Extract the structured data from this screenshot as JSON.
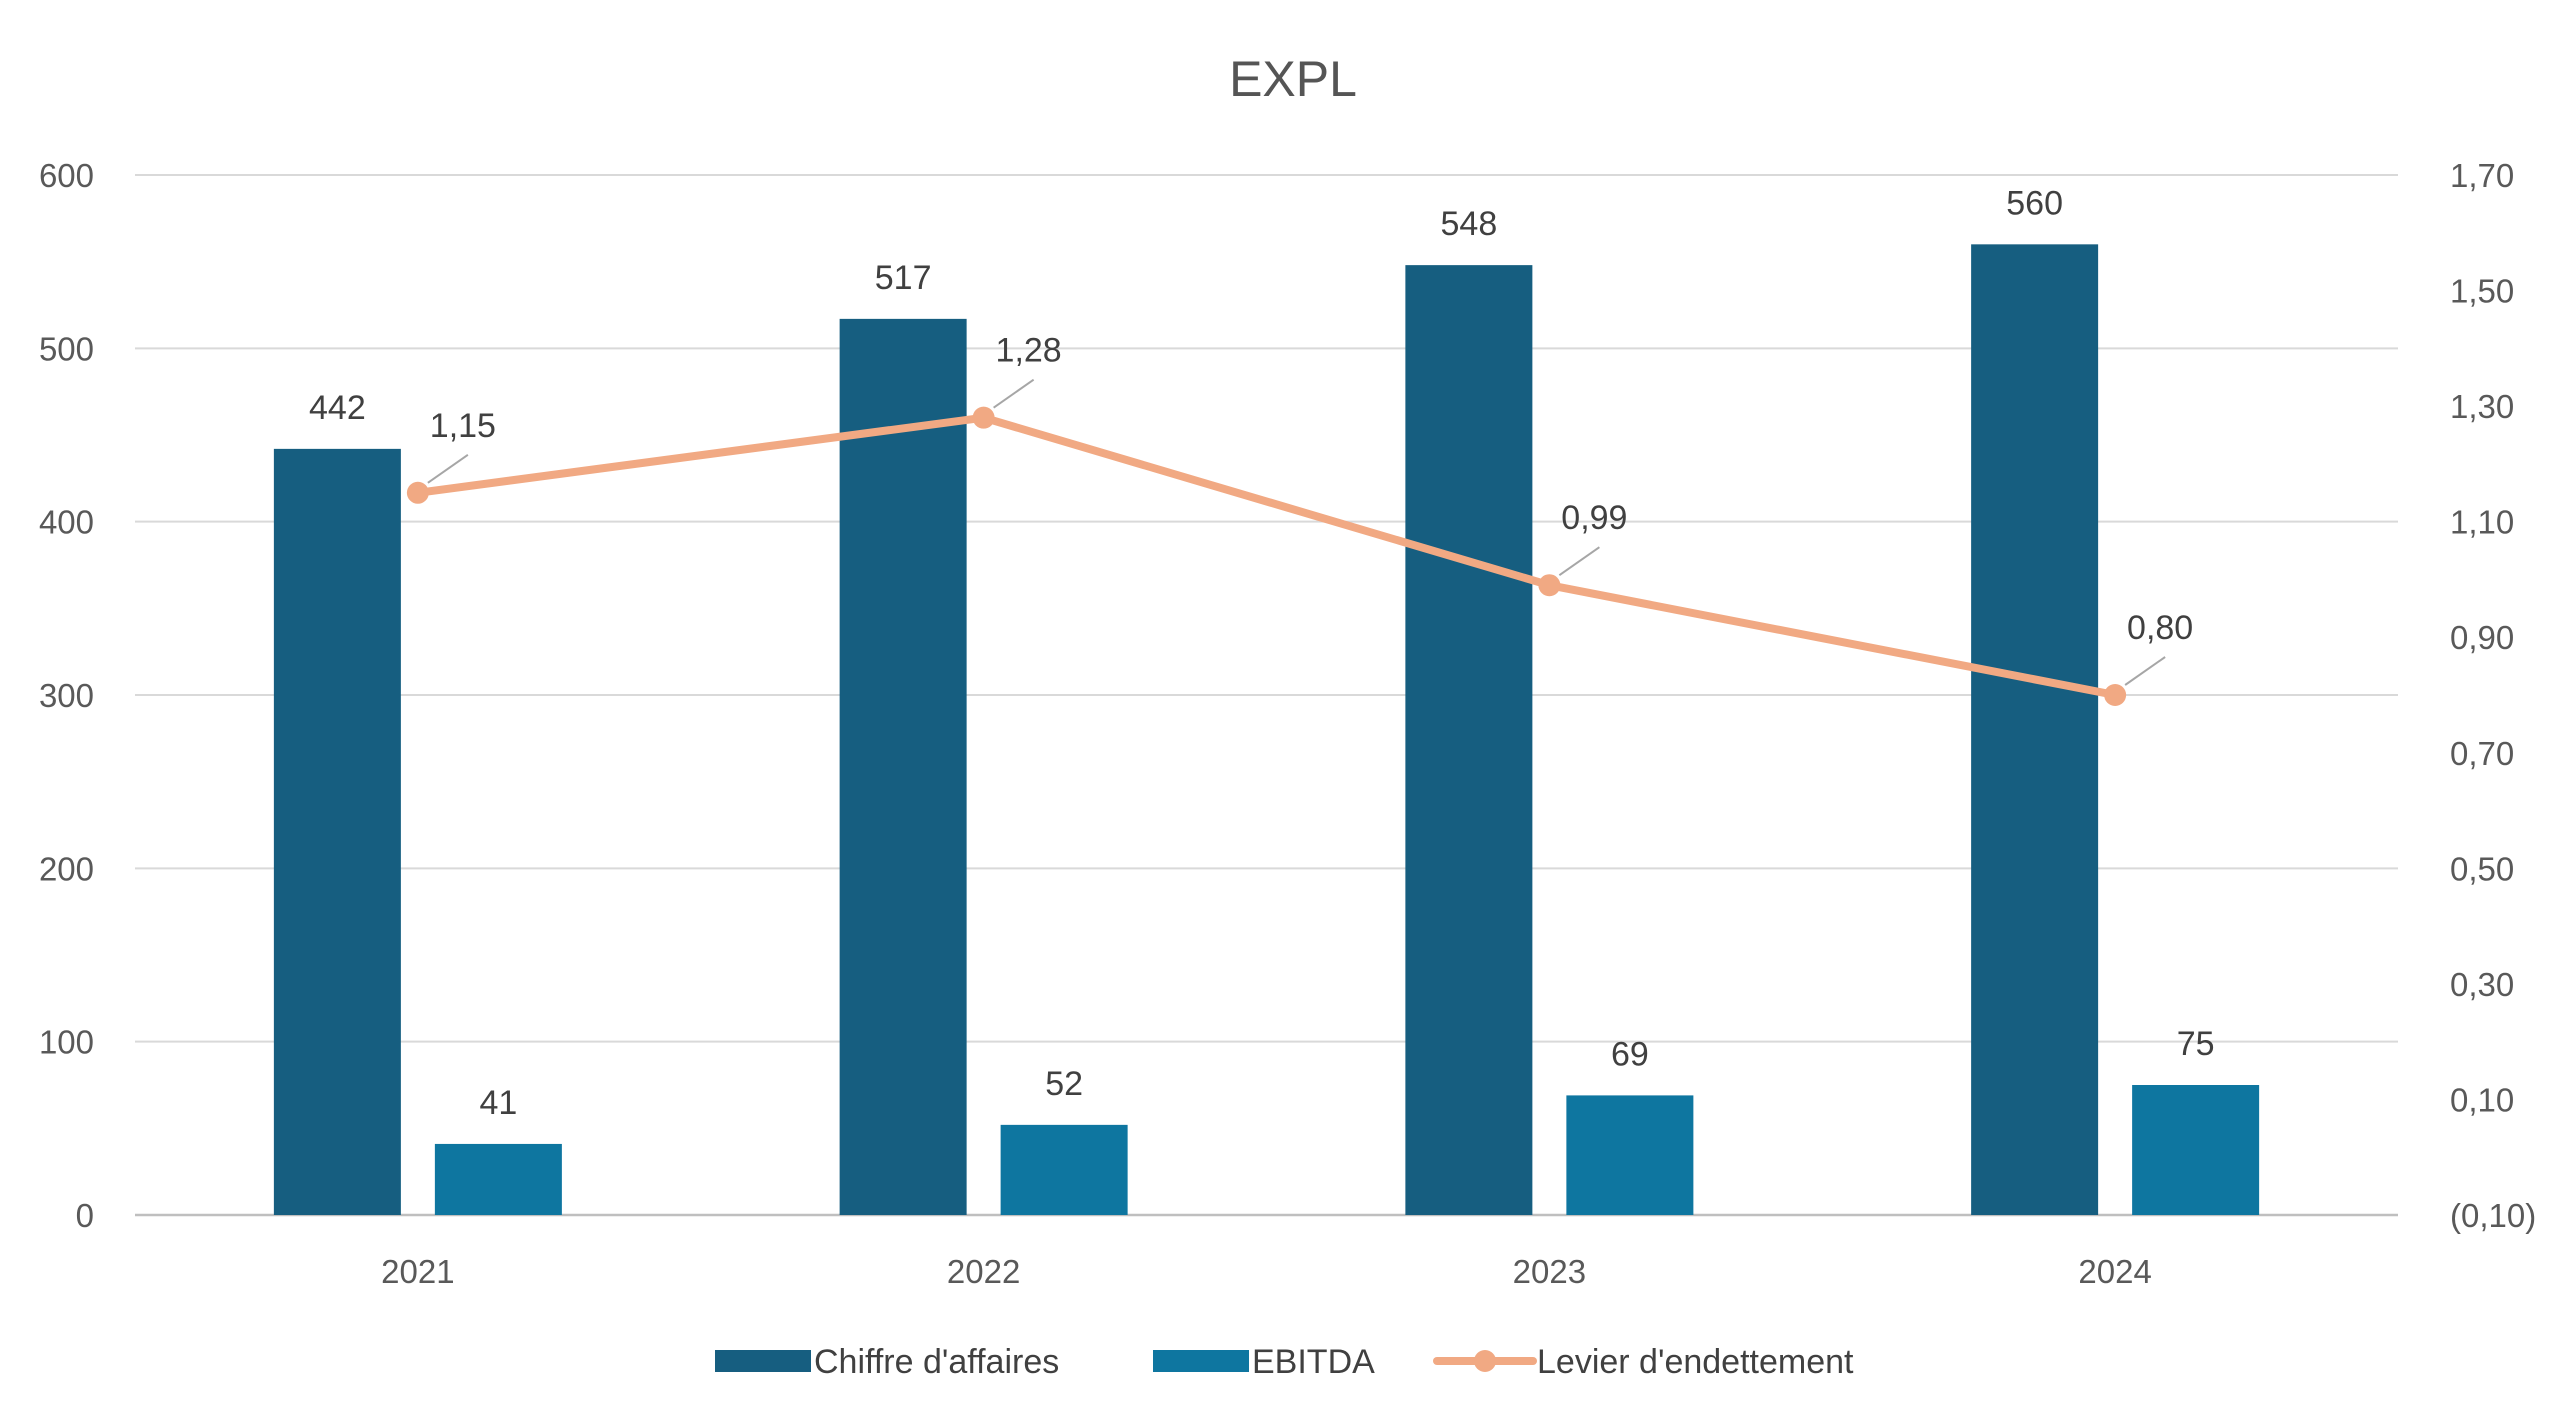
{
  "chart_data": {
    "type": "bar",
    "title": "EXPL",
    "categories": [
      "2021",
      "2022",
      "2023",
      "2024"
    ],
    "series": [
      {
        "name": "Chiffre d'affaires",
        "type": "bar",
        "axis": "left",
        "color": "#165E80",
        "values": [
          442,
          517,
          548,
          560
        ],
        "labels": [
          "442",
          "517",
          "548",
          "560"
        ]
      },
      {
        "name": "EBITDA",
        "type": "bar",
        "axis": "left",
        "color": "#0E76A0",
        "values": [
          41,
          52,
          69,
          75
        ],
        "labels": [
          "41",
          "52",
          "69",
          "75"
        ]
      },
      {
        "name": "Levier d'endettement",
        "type": "line",
        "axis": "right",
        "color": "#F1A983",
        "values": [
          1.15,
          1.28,
          0.99,
          0.8
        ],
        "labels": [
          "1,15",
          "1,28",
          "0,99",
          "0,80"
        ]
      }
    ],
    "y_left": {
      "ylim": [
        0,
        600
      ],
      "ticks": [
        0,
        100,
        200,
        300,
        400,
        500,
        600
      ],
      "tick_labels": [
        "0",
        "100",
        "200",
        "300",
        "400",
        "500",
        "600"
      ]
    },
    "y_right": {
      "ylim": [
        -0.1,
        1.7
      ],
      "ticks": [
        -0.1,
        0.1,
        0.3,
        0.5,
        0.7,
        0.9,
        1.1,
        1.3,
        1.5,
        1.7
      ],
      "tick_labels": [
        "(0,10)",
        "0,10",
        "0,30",
        "0,50",
        "0,70",
        "0,90",
        "1,10",
        "1,30",
        "1,50",
        "1,70"
      ]
    },
    "grid": true,
    "legend": "bottom"
  }
}
